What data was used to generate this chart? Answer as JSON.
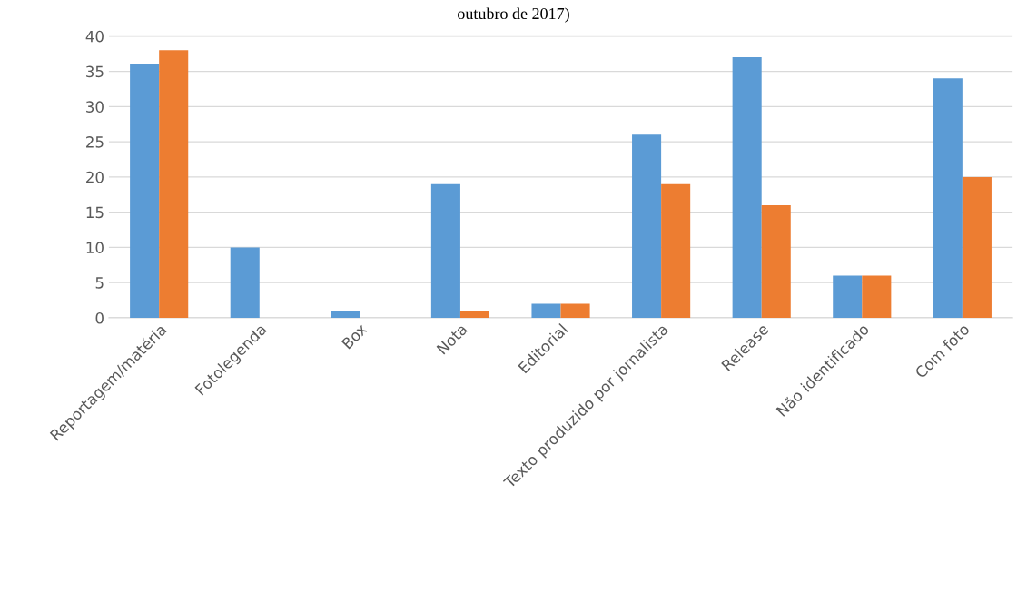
{
  "chart_data": {
    "type": "bar",
    "title": "outubro de 2017)",
    "categories": [
      "Reportagem/matéria",
      "Fotolegenda",
      "Box",
      "Nota",
      "Editorial",
      "Texto produzido por jornalista",
      "Release",
      "Não identificado",
      "Com foto"
    ],
    "series": [
      {
        "color": "#5b9bd5",
        "values": [
          36,
          10,
          1,
          19,
          2,
          26,
          37,
          6,
          34
        ]
      },
      {
        "color": "#ed7d31",
        "values": [
          38,
          0,
          0,
          1,
          2,
          19,
          16,
          6,
          20
        ]
      }
    ],
    "ylim": [
      0,
      40
    ],
    "yticks": [
      0,
      5,
      10,
      15,
      20,
      25,
      30,
      35,
      40
    ],
    "grid": "y"
  }
}
